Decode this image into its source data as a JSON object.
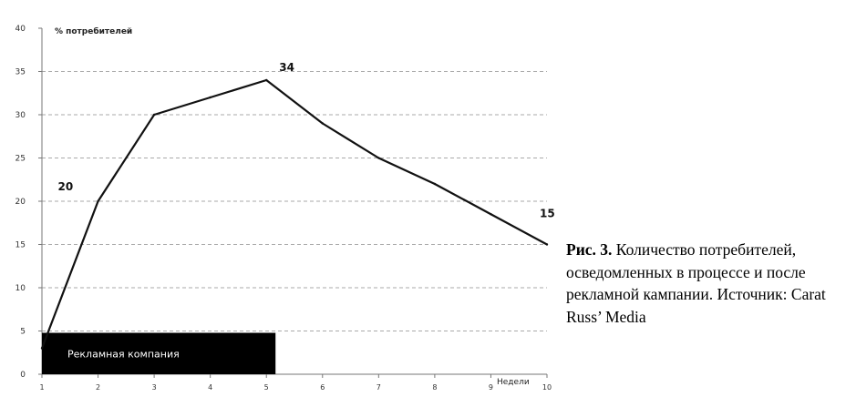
{
  "chart_data": {
    "type": "line",
    "ylabel": "% потребителей",
    "xlabel": "Недели",
    "ylim": [
      0,
      40
    ],
    "yticks": [
      0,
      5,
      10,
      15,
      20,
      25,
      30,
      35,
      40
    ],
    "xlim": [
      1,
      10
    ],
    "xticks": [
      1,
      2,
      3,
      4,
      5,
      6,
      7,
      8,
      9,
      10
    ],
    "grid": true,
    "series": [
      {
        "x": [
          1,
          2,
          3,
          4,
          5,
          6,
          7,
          8,
          9,
          10
        ],
        "y": [
          3,
          20,
          30,
          32,
          34,
          29,
          25,
          22,
          18.5,
          15
        ]
      }
    ],
    "data_labels": [
      {
        "x": 2,
        "y": 20,
        "text": "20"
      },
      {
        "x": 5,
        "y": 34,
        "text": "34"
      },
      {
        "x": 10,
        "y": 15,
        "text": "15"
      }
    ],
    "annotation": {
      "text": "Рекламная компания",
      "x_start": 1,
      "x_end": 5
    }
  },
  "caption": {
    "label": "Рис. 3.",
    "text": "Количество потребителей, осведомленных в процессе и после рекламной кампании. Источник: Carat Russ’ Media"
  }
}
